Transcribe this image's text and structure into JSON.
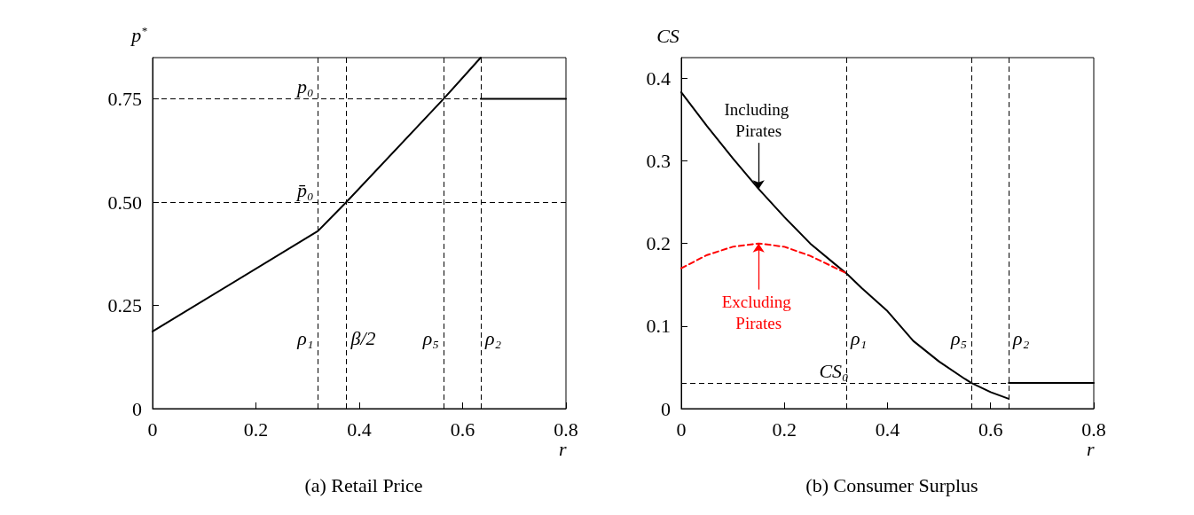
{
  "chart_data": [
    {
      "type": "line",
      "title": "(a) Retail Price",
      "xlabel": "r",
      "ylabel": "p$^{*}$",
      "xlim": [
        0,
        0.8
      ],
      "ylim": [
        0,
        0.85
      ],
      "xticks": [
        0,
        0.2,
        0.4,
        0.6,
        0.8
      ],
      "yticks": [
        0,
        0.25,
        {
          "value": 0.5,
          "label": "0.50"
        },
        0.75
      ],
      "grid": false,
      "marker": "none",
      "line_style": "solid",
      "series": [
        {
          "color": "#000000",
          "x": [
            0,
            0.32,
            0.375,
            0.563,
            0.635
          ],
          "values": [
            0.187,
            0.43,
            0.5,
            0.75,
            0.85
          ]
        },
        {
          "color": "#000000",
          "x": [
            0.635,
            0.8
          ],
          "values": [
            0.75,
            0.75
          ]
        }
      ],
      "ref_lines": [
        {
          "axis": "y",
          "value": 0.75,
          "label": "p₀",
          "line_style": "dashed",
          "color": "#000000"
        },
        {
          "axis": "y",
          "value": 0.5,
          "label": "p̄₀",
          "line_style": "dashed",
          "color": "#000000"
        },
        {
          "axis": "x",
          "value": 0.32,
          "label": "ρ₁",
          "line_style": "dashed",
          "color": "#000000"
        },
        {
          "axis": "x",
          "value": 0.375,
          "label": "β/2",
          "line_style": "dashed",
          "color": "#000000"
        },
        {
          "axis": "x",
          "value": 0.563,
          "label": "ρ₅",
          "line_style": "dashed",
          "color": "#000000"
        },
        {
          "axis": "x",
          "value": 0.635,
          "label": "ρ₂",
          "line_style": "dashed",
          "color": "#000000"
        }
      ]
    },
    {
      "type": "line",
      "title": "(b) Consumer Surplus",
      "xlabel": "r",
      "ylabel": "CS",
      "xlim": [
        0,
        0.8
      ],
      "ylim": [
        0,
        0.425
      ],
      "xticks": [
        0,
        0.2,
        0.4,
        0.6,
        0.8
      ],
      "yticks": [
        0,
        0.1,
        0.2,
        0.3,
        0.4
      ],
      "grid": false,
      "marker": "none",
      "series": [
        {
          "color": "#000000",
          "line_style": "solid",
          "x": [
            0,
            0.05,
            0.1,
            0.15,
            0.2,
            0.25,
            0.3,
            0.32,
            0.35,
            0.4,
            0.45,
            0.5,
            0.55,
            0.563,
            0.6,
            0.635
          ],
          "values": [
            0.383,
            0.342,
            0.303,
            0.266,
            0.232,
            0.2,
            0.174,
            0.164,
            0.146,
            0.118,
            0.082,
            0.057,
            0.036,
            0.031,
            0.02,
            0.012
          ]
        },
        {
          "color": "#ff0000",
          "line_style": "dashed",
          "x": [
            0,
            0.05,
            0.1,
            0.15,
            0.2,
            0.25,
            0.3,
            0.32
          ],
          "values": [
            0.17,
            0.186,
            0.196,
            0.2,
            0.196,
            0.185,
            0.17,
            0.164
          ]
        },
        {
          "color": "#000000",
          "line_style": "solid",
          "x": [
            0.635,
            0.8
          ],
          "values": [
            0.031,
            0.031
          ]
        }
      ],
      "annotations": [
        {
          "text": "Including Pirates",
          "x": 0.15,
          "y": 0.266
        },
        {
          "text": "Excluding Pirates",
          "x": 0.15,
          "y": 0.2
        }
      ],
      "ref_lines": [
        {
          "axis": "y",
          "value": 0.031,
          "label": "CS₀",
          "line_style": "dashed",
          "color": "#000000"
        },
        {
          "axis": "x",
          "value": 0.32,
          "label": "ρ₁",
          "line_style": "dashed",
          "color": "#000000"
        },
        {
          "axis": "x",
          "value": 0.563,
          "label": "ρ₅",
          "line_style": "dashed",
          "color": "#000000"
        },
        {
          "axis": "x",
          "value": 0.635,
          "label": "ρ₂",
          "line_style": "dashed",
          "color": "#000000"
        }
      ]
    }
  ]
}
